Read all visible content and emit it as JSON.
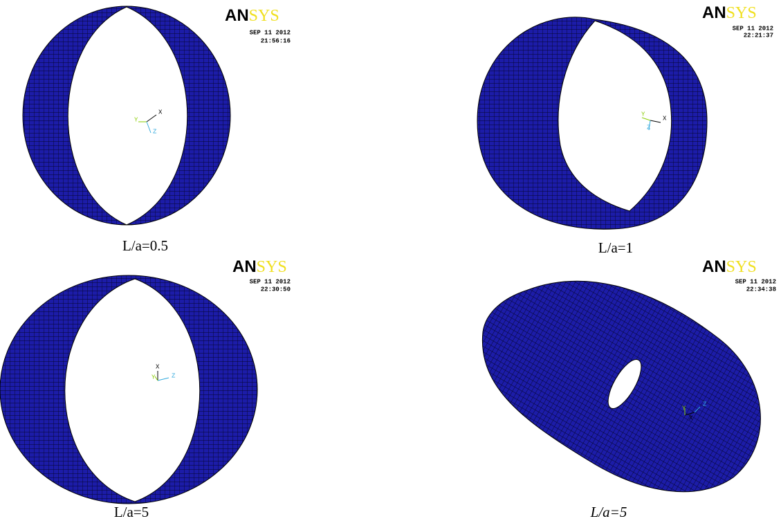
{
  "panels": [
    {
      "logo": {
        "a": "AN",
        "b": "SYS"
      },
      "date": "SEP 11 2012",
      "time": "21:56:16",
      "axes": {
        "x": "X",
        "y": "Y",
        "z": "Z"
      },
      "caption": "L/a=0.5"
    },
    {
      "logo": {
        "a": "AN",
        "b": "SYS"
      },
      "date": "SEP 11 2012",
      "time": "22:21:37",
      "axes": {
        "x": "X",
        "y": "Y",
        "z": "Z"
      },
      "caption": "L/a=1"
    },
    {
      "logo": {
        "a": "AN",
        "b": "SYS"
      },
      "date": "SEP 11 2012",
      "time": "22:30:50",
      "axes": {
        "x": "X",
        "y": "Y",
        "z": "Z"
      },
      "caption": "L/a=5"
    },
    {
      "logo": {
        "a": "AN",
        "b": "SYS"
      },
      "date": "SEP 11 2012",
      "time": "22:34:38",
      "axes": {
        "x": "X",
        "y": "Y",
        "z": "Z"
      },
      "caption": "L/a=5"
    }
  ]
}
